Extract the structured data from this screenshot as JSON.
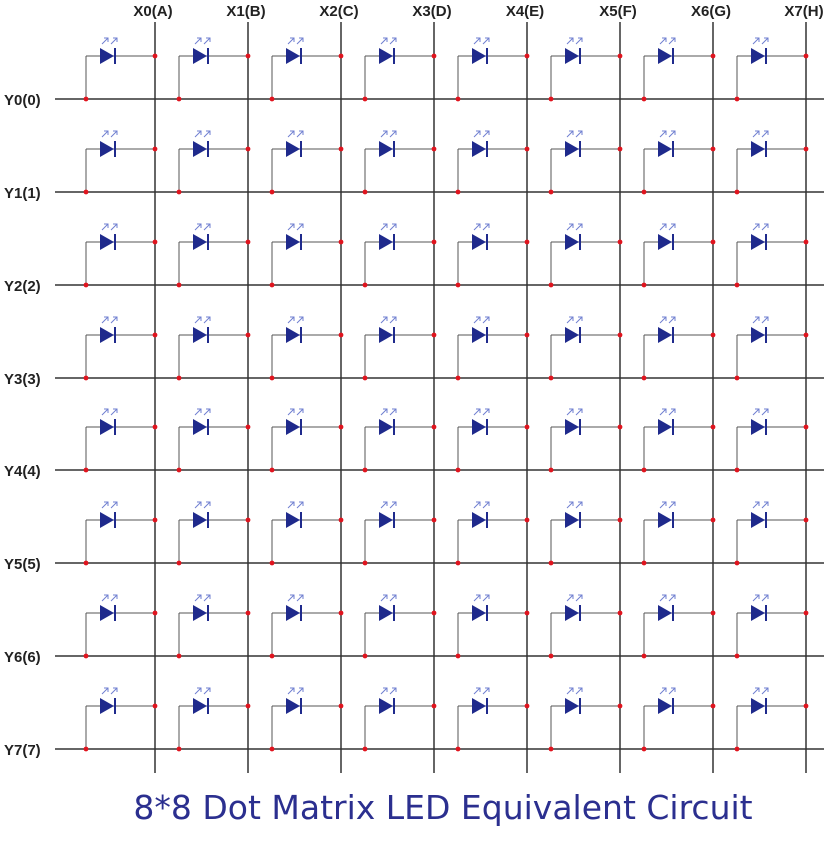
{
  "diagram": {
    "title": "8*8 Dot Matrix LED Equivalent Circuit",
    "columns": [
      "X0(A)",
      "X1(B)",
      "X2(C)",
      "X3(D)",
      "X4(E)",
      "X5(F)",
      "X6(G)",
      "X7(H)"
    ],
    "rows": [
      "Y0(0)",
      "Y1(1)",
      "Y2(2)",
      "Y3(3)",
      "Y4(4)",
      "Y5(5)",
      "Y6(6)",
      "Y7(7)"
    ],
    "element": "led-icon",
    "colors": {
      "wire": "#333333",
      "junction": "#e0141e",
      "led": "#1f2a8c",
      "led_arrows": "#6f7fd0",
      "title": "#2b2f8f",
      "label": "#222222"
    }
  }
}
